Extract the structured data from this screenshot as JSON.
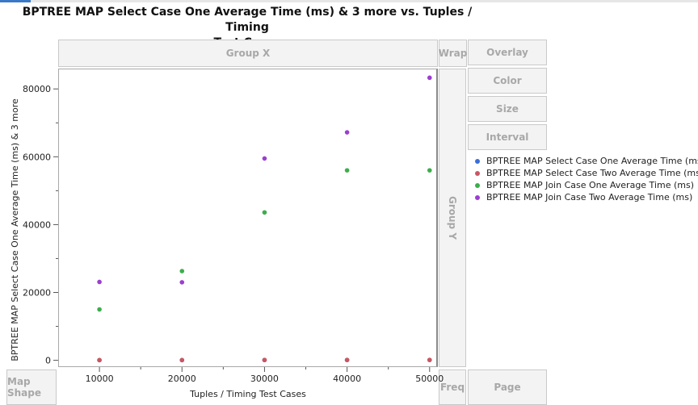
{
  "title_line1": "BPTREE MAP Select Case One Average Time (ms)  & 3 more vs. Tuples / Timing",
  "title_line2": "Test Cases",
  "zones": {
    "group_x": "Group X",
    "wrap": "Wrap",
    "overlay": "Overlay",
    "color": "Color",
    "size": "Size",
    "interval": "Interval",
    "group_y": "Group Y",
    "map_shape": "Map Shape",
    "freq": "Freq",
    "page": "Page"
  },
  "colors": {
    "select_one": "#3a6fd8",
    "select_two": "#c95663",
    "join_one": "#3cae4a",
    "join_two": "#9a3fd0"
  },
  "chart_data": {
    "type": "scatter",
    "title": "BPTREE MAP Select Case One Average Time (ms)  & 3 more vs. Tuples / Timing Test Cases",
    "xlabel": "Tuples / Timing Test Cases",
    "ylabel": "BPTREE MAP Select Case One Average Time (ms) & 3 more",
    "xlim": [
      5000,
      51000
    ],
    "ylim": [
      -2000,
      86000
    ],
    "xticks": [
      10000,
      20000,
      30000,
      40000,
      50000
    ],
    "xtick_labels": [
      "10000",
      "20000",
      "30000",
      "40000",
      "50000"
    ],
    "yticks": [
      0,
      20000,
      40000,
      60000,
      80000
    ],
    "ytick_labels": [
      "0",
      "20000",
      "40000",
      "60000",
      "80000"
    ],
    "legend_position": "right",
    "x": [
      10000,
      20000,
      30000,
      40000,
      50000
    ],
    "series": [
      {
        "name": "BPTREE MAP Select Case One Average Time (ms)",
        "color": "#3a6fd8",
        "values": [
          50,
          60,
          80,
          90,
          100
        ]
      },
      {
        "name": "BPTREE MAP Select Case Two Average Time (ms)",
        "color": "#c95663",
        "values": [
          60,
          70,
          90,
          100,
          110
        ]
      },
      {
        "name": "BPTREE MAP Join Case One Average Time (ms)",
        "color": "#3cae4a",
        "values": [
          15000,
          26300,
          43600,
          56000,
          56000
        ]
      },
      {
        "name": "BPTREE MAP Join Case Two Average Time (ms)",
        "color": "#9a3fd0",
        "values": [
          23100,
          23000,
          59500,
          67200,
          83300
        ]
      }
    ]
  }
}
